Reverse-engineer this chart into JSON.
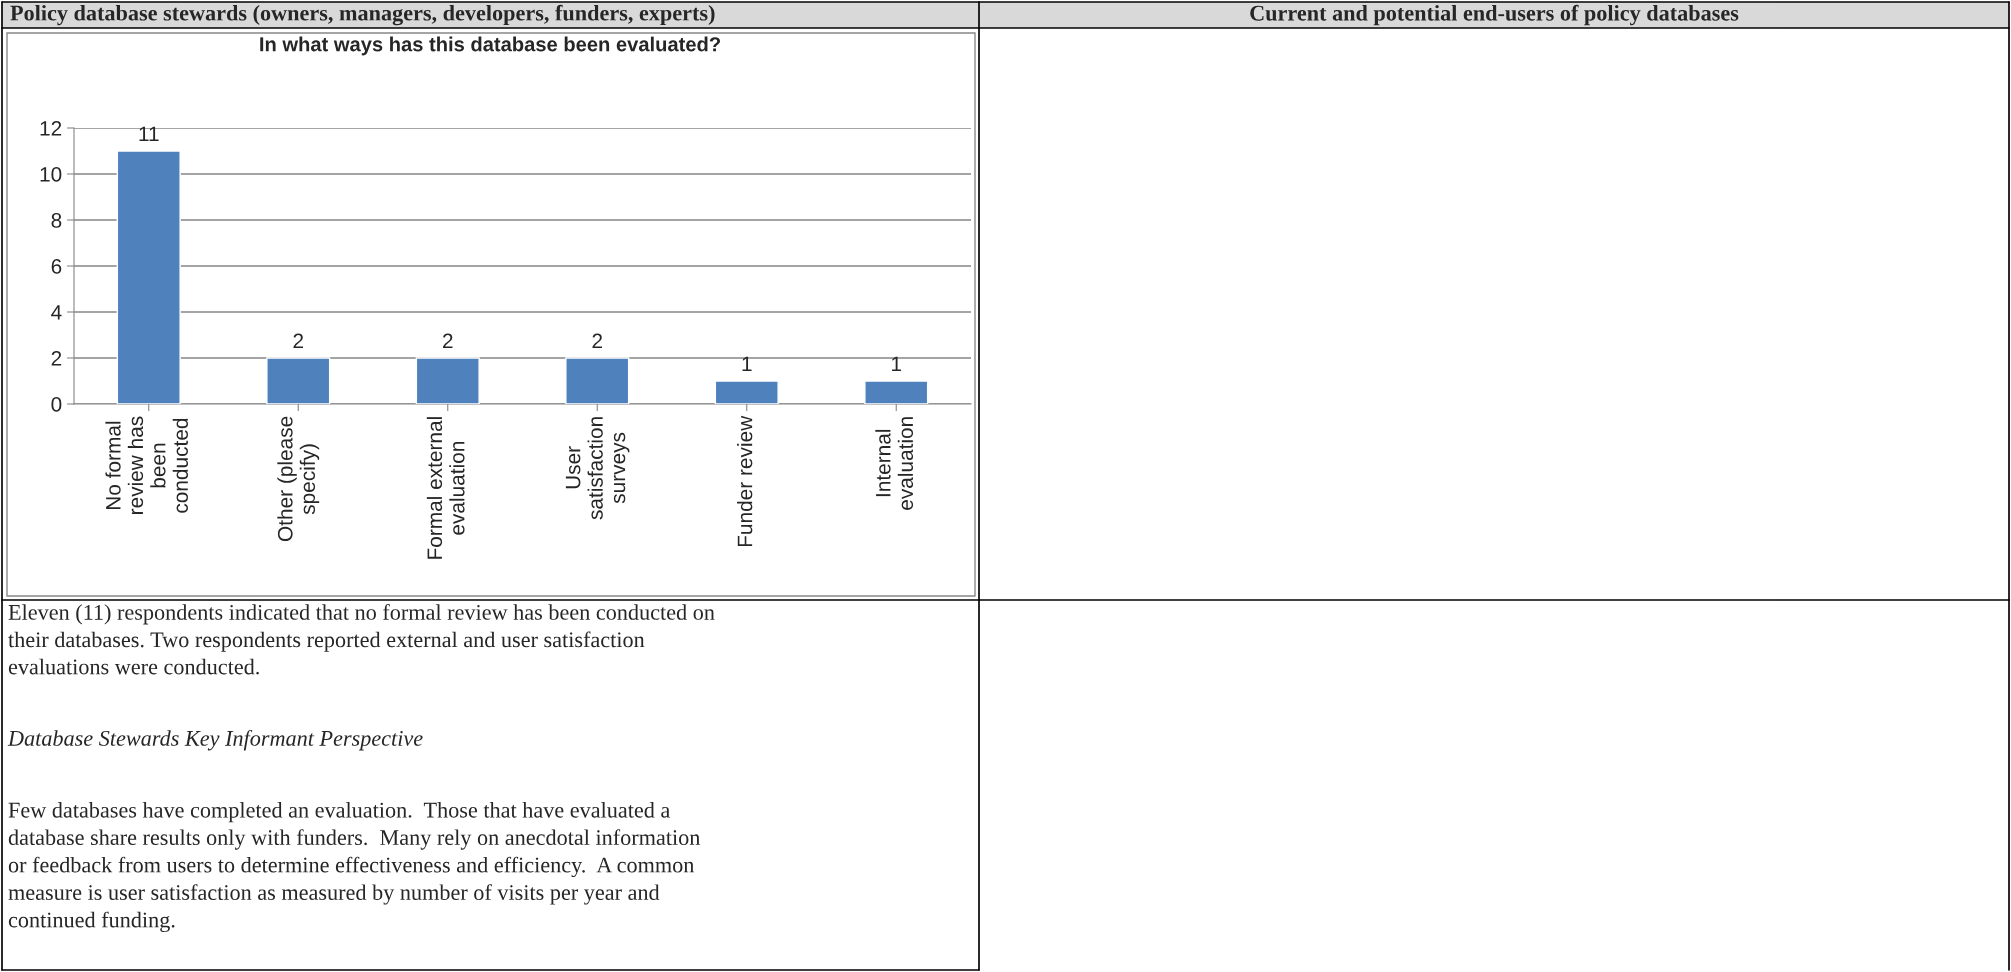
{
  "chart_data": {
    "type": "bar",
    "title": "In what ways has this database been evaluated?",
    "categories": [
      "No formal\nreview has\nbeen\nconducted",
      "Other (please\nspecify)",
      "Formal external\nevaluation",
      "User\nsatisfaction\nsurveys",
      "Funder review",
      "Internal\nevaluation"
    ],
    "values": [
      11,
      2,
      2,
      2,
      1,
      1
    ],
    "color": "#4f81bd",
    "ylim": [
      0,
      12
    ],
    "yticks": [
      0,
      2,
      4,
      6,
      8,
      10,
      12
    ],
    "grid": "y",
    "data_labels": true,
    "annotations": [
      "Policy database stewards (owners, managers, developers, funders, experts)",
      "Current and potential end-users of policy databases",
      "Eleven (11) respondents indicated that no formal review has been conducted on\ntheir databases. Two respondents reported external and user satisfaction\nevaluations were conducted.",
      "Database Stewards Key Informant Perspective",
      "Few databases have completed an evaluation.  Those that have evaluated a\ndatabase share results only with funders.  Many rely on anecdotal information\nor feedback from users to determine effectiveness and efficiency.  A common\nmeasure is user satisfaction as measured by number of visits per year and\ncontinued funding."
    ]
  }
}
